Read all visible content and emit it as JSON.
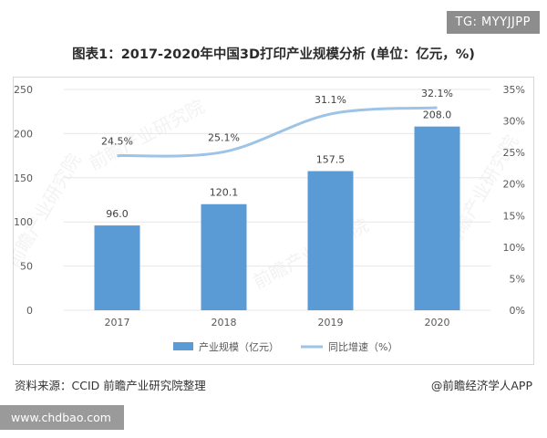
{
  "tag": "TG: MYYJJPP",
  "url": "www.chdbao.com",
  "source_note": "资料来源：CCID 前瞻产业研究院整理",
  "credit": "@前瞻经济学人APP",
  "watermark": "前瞻产业研究院",
  "colors": {
    "bar": "#5b9bd5",
    "line": "#9dc3e6",
    "grid": "#e7e7e7",
    "text": "#595959"
  },
  "chart_data": {
    "type": "bar",
    "title": "图表1：2017-2020年中国3D打印产业规模分析 (单位：亿元，%)",
    "categories": [
      "2017",
      "2018",
      "2019",
      "2020"
    ],
    "series": [
      {
        "name": "产业规模（亿元）",
        "type": "bar",
        "axis": "left",
        "values": [
          96.0,
          120.1,
          157.5,
          208.0
        ],
        "labels": [
          "96.0",
          "120.1",
          "157.5",
          "208.0"
        ]
      },
      {
        "name": "同比增速（%）",
        "type": "line",
        "axis": "right",
        "values": [
          24.5,
          25.1,
          31.1,
          32.1
        ],
        "labels": [
          "24.5%",
          "25.1%",
          "31.1%",
          "32.1%"
        ]
      }
    ],
    "y_left": {
      "min": 0,
      "max": 250,
      "ticks": [
        "0",
        "50",
        "100",
        "150",
        "200",
        "250"
      ]
    },
    "y_right": {
      "min": 0,
      "max": 35,
      "ticks": [
        "0%",
        "5%",
        "10%",
        "15%",
        "20%",
        "25%",
        "30%",
        "35%"
      ]
    },
    "grid": true,
    "legend_position": "bottom"
  }
}
